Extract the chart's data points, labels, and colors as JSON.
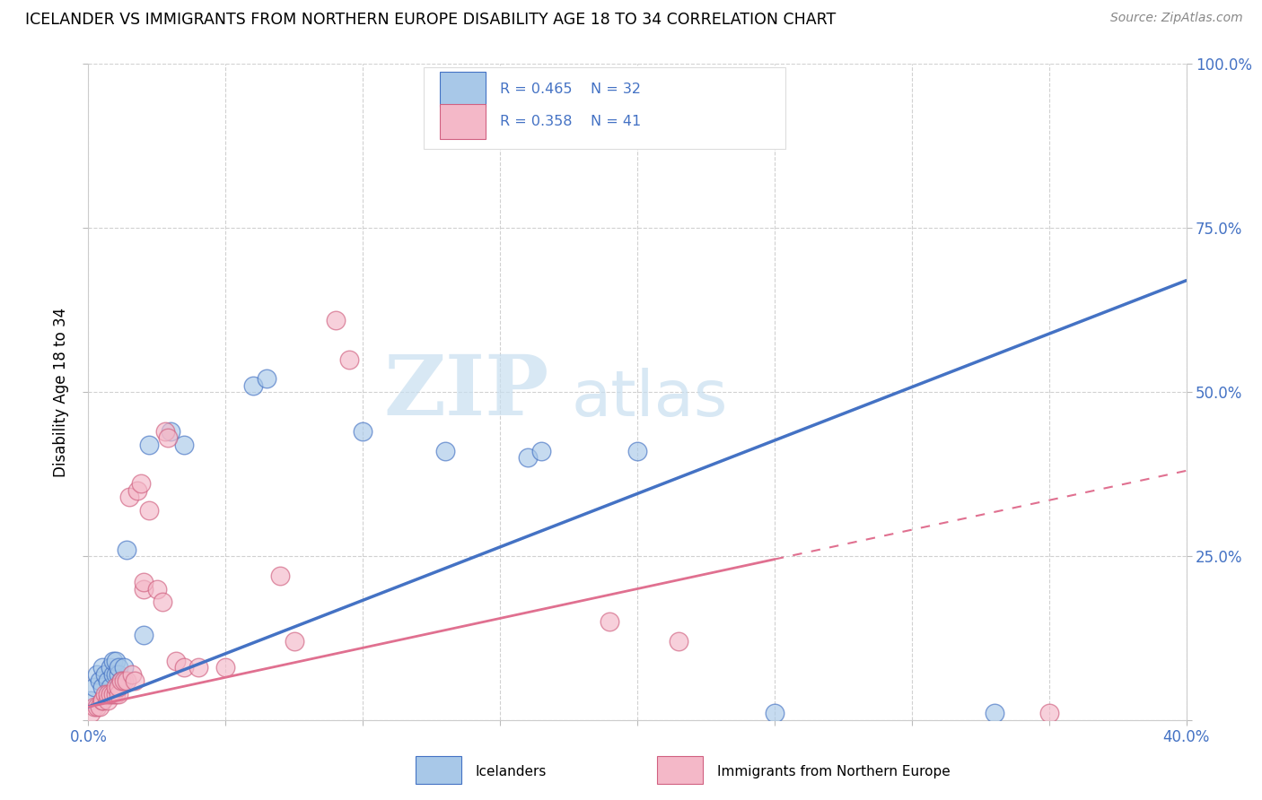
{
  "title": "ICELANDER VS IMMIGRANTS FROM NORTHERN EUROPE DISABILITY AGE 18 TO 34 CORRELATION CHART",
  "source": "Source: ZipAtlas.com",
  "ylabel": "Disability Age 18 to 34",
  "xlim": [
    0.0,
    0.4
  ],
  "ylim": [
    0.0,
    1.0
  ],
  "blue_color": "#a8c8e8",
  "pink_color": "#f4b8c8",
  "blue_line_color": "#4472c4",
  "pink_line_color": "#e07090",
  "R_blue": 0.465,
  "N_blue": 32,
  "R_pink": 0.358,
  "N_pink": 41,
  "legend_label_blue": "Icelanders",
  "legend_label_pink": "Immigrants from Northern Europe",
  "watermark_zip": "ZIP",
  "watermark_atlas": "atlas",
  "blue_line_x0": 0.0,
  "blue_line_y0": 0.02,
  "blue_line_x1": 0.4,
  "blue_line_y1": 0.67,
  "pink_line_x0": 0.0,
  "pink_line_y0": 0.02,
  "pink_line_x1": 0.4,
  "pink_line_y1": 0.38,
  "blue_x": [
    0.001,
    0.002,
    0.003,
    0.004,
    0.005,
    0.005,
    0.006,
    0.007,
    0.008,
    0.008,
    0.009,
    0.009,
    0.01,
    0.01,
    0.011,
    0.011,
    0.012,
    0.013,
    0.014,
    0.02,
    0.022,
    0.03,
    0.035,
    0.06,
    0.065,
    0.1,
    0.13,
    0.16,
    0.165,
    0.2,
    0.25,
    0.33
  ],
  "blue_y": [
    0.03,
    0.05,
    0.07,
    0.06,
    0.05,
    0.08,
    0.07,
    0.06,
    0.05,
    0.08,
    0.07,
    0.09,
    0.07,
    0.09,
    0.07,
    0.08,
    0.06,
    0.08,
    0.26,
    0.13,
    0.42,
    0.44,
    0.42,
    0.51,
    0.52,
    0.44,
    0.41,
    0.4,
    0.41,
    0.41,
    0.01,
    0.01
  ],
  "pink_x": [
    0.001,
    0.002,
    0.003,
    0.004,
    0.005,
    0.005,
    0.006,
    0.007,
    0.007,
    0.008,
    0.009,
    0.01,
    0.01,
    0.011,
    0.011,
    0.012,
    0.013,
    0.014,
    0.015,
    0.016,
    0.017,
    0.018,
    0.019,
    0.02,
    0.02,
    0.022,
    0.025,
    0.027,
    0.028,
    0.029,
    0.032,
    0.035,
    0.04,
    0.05,
    0.07,
    0.075,
    0.09,
    0.095,
    0.19,
    0.215,
    0.35
  ],
  "pink_y": [
    0.01,
    0.02,
    0.02,
    0.02,
    0.03,
    0.03,
    0.04,
    0.03,
    0.04,
    0.04,
    0.04,
    0.04,
    0.05,
    0.04,
    0.05,
    0.06,
    0.06,
    0.06,
    0.34,
    0.07,
    0.06,
    0.35,
    0.36,
    0.2,
    0.21,
    0.32,
    0.2,
    0.18,
    0.44,
    0.43,
    0.09,
    0.08,
    0.08,
    0.08,
    0.22,
    0.12,
    0.61,
    0.55,
    0.15,
    0.12,
    0.01
  ]
}
